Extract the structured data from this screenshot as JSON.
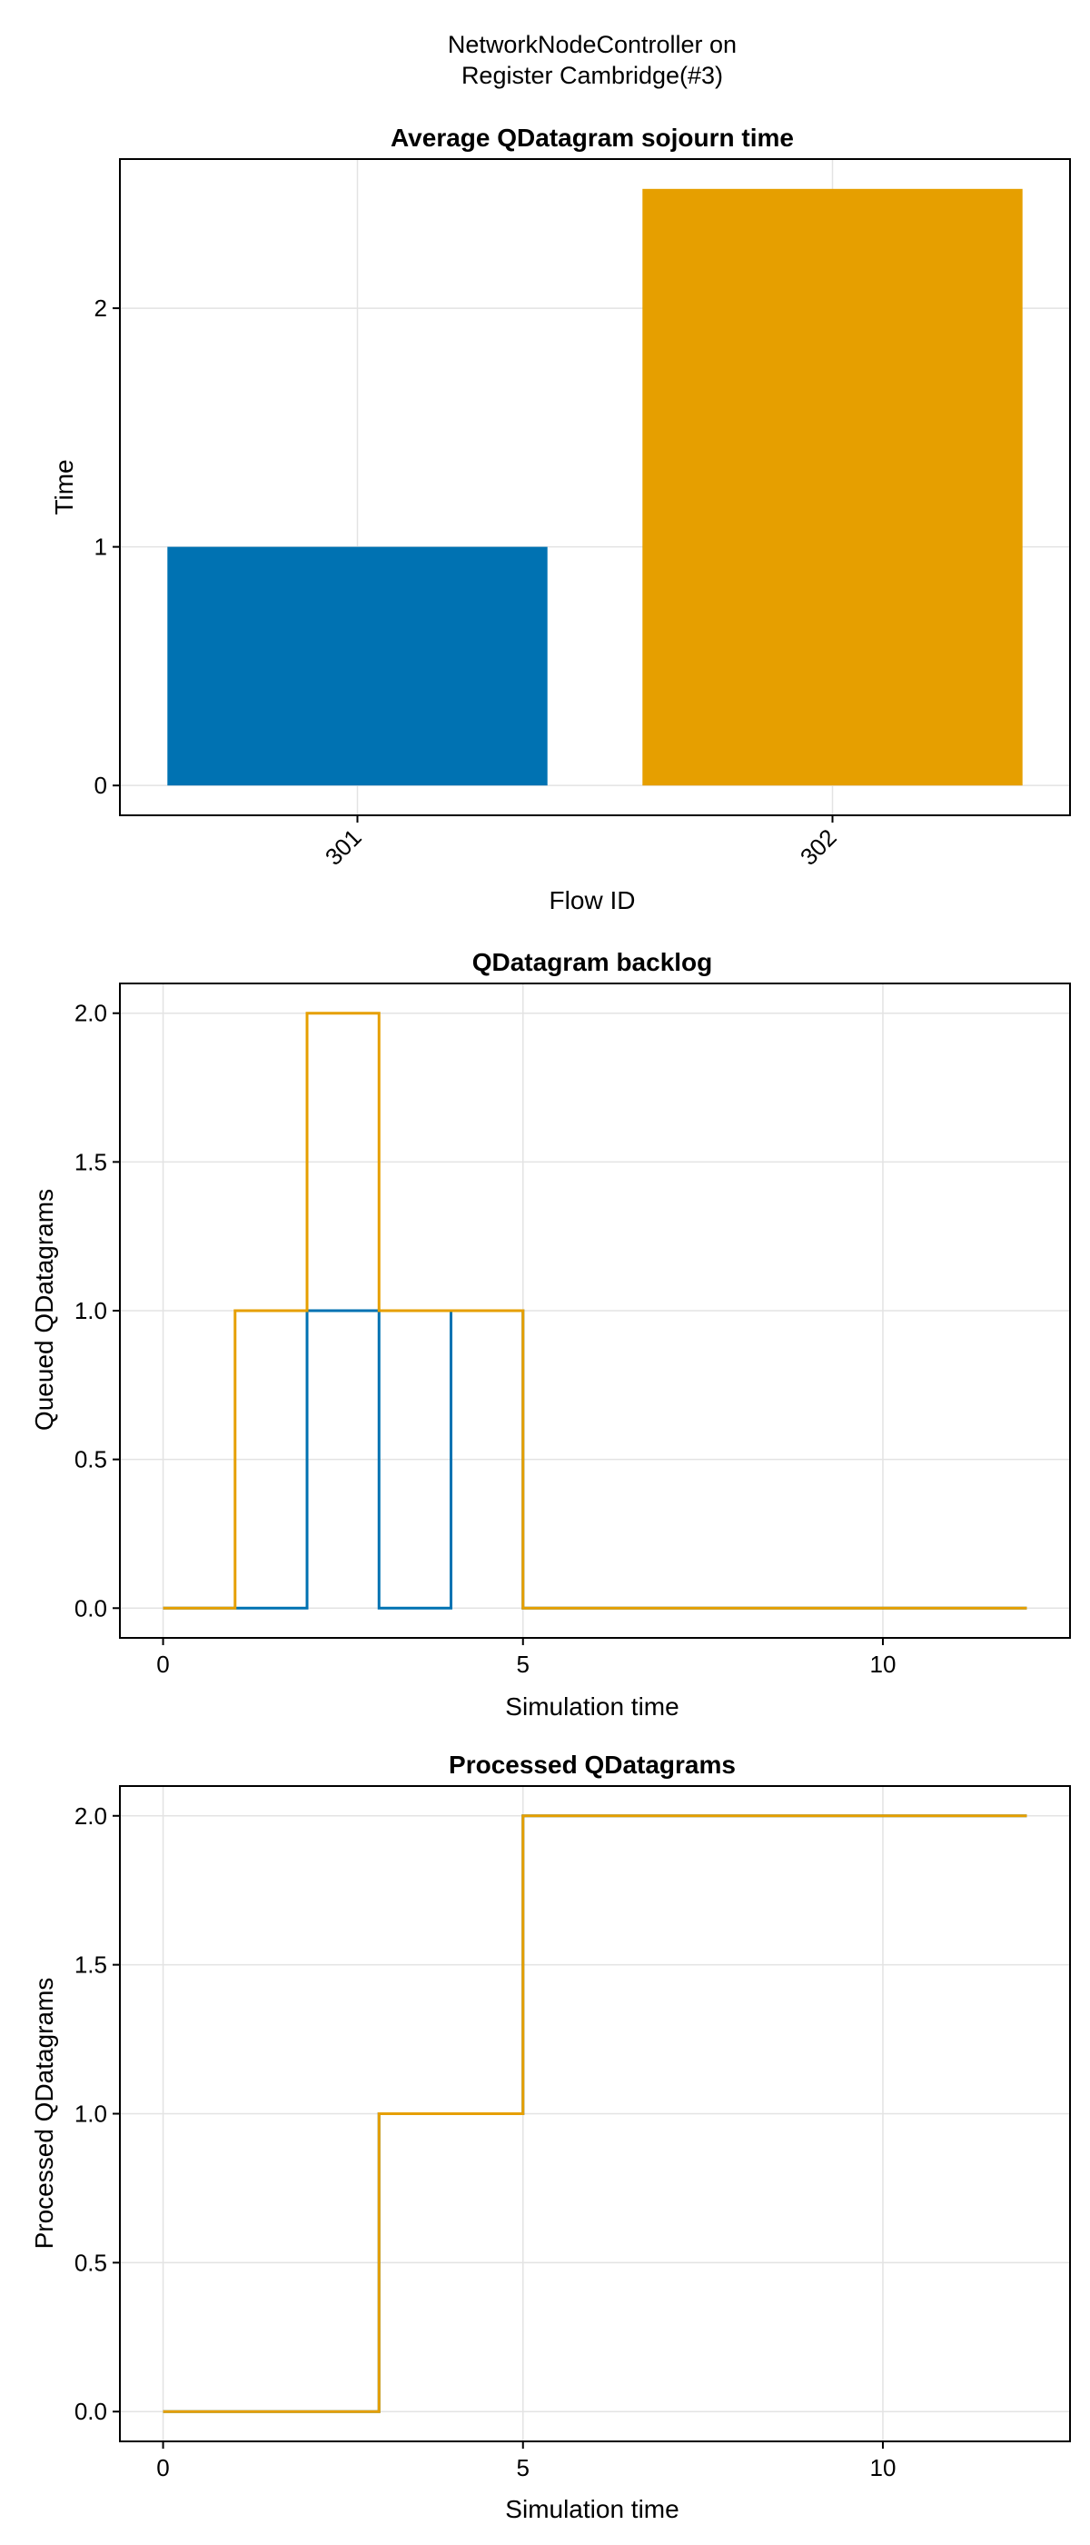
{
  "figure_title": [
    "NetworkNodeController on",
    "Register Cambridge(#3)"
  ],
  "chart_data": [
    {
      "type": "bar",
      "title": "Average QDatagram sojourn time",
      "xlabel": "Flow ID",
      "ylabel": "Time",
      "categories": [
        "301",
        "302"
      ],
      "values": [
        1.0,
        2.5
      ],
      "colors": [
        "#0072b2",
        "#e69f00"
      ],
      "ylim": [
        -0.125,
        2.625
      ],
      "yticks": [
        0,
        1,
        2
      ],
      "ytick_labels": [
        "0",
        "1",
        "2"
      ],
      "xtick_rotation": "45deg",
      "grid": true
    },
    {
      "type": "line",
      "step": true,
      "title": "QDatagram backlog",
      "xlabel": "Simulation time",
      "ylabel": "Queued QDatagrams",
      "xlim": [
        -0.6,
        12.6
      ],
      "ylim": [
        -0.1,
        2.1
      ],
      "xticks": [
        0,
        5,
        10
      ],
      "xtick_labels": [
        "0",
        "5",
        "10"
      ],
      "yticks": [
        0.0,
        0.5,
        1.0,
        1.5,
        2.0
      ],
      "ytick_labels": [
        "0.0",
        "0.5",
        "1.0",
        "1.5",
        "2.0"
      ],
      "grid": true,
      "series": [
        {
          "color": "#0072b2",
          "x": [
            0,
            2,
            3,
            4,
            5,
            12
          ],
          "y": [
            0,
            1,
            0,
            1,
            0,
            0
          ]
        },
        {
          "color": "#e69f00",
          "x": [
            0,
            1,
            2,
            3,
            5,
            12
          ],
          "y": [
            0,
            1,
            2,
            1,
            0,
            0
          ]
        }
      ]
    },
    {
      "type": "line",
      "step": true,
      "title": "Processed QDatagrams",
      "xlabel": "Simulation time",
      "ylabel": "Processed QDatagrams",
      "xlim": [
        -0.6,
        12.6
      ],
      "ylim": [
        -0.1,
        2.1
      ],
      "xticks": [
        0,
        5,
        10
      ],
      "xtick_labels": [
        "0",
        "5",
        "10"
      ],
      "yticks": [
        0.0,
        0.5,
        1.0,
        1.5,
        2.0
      ],
      "ytick_labels": [
        "0.0",
        "0.5",
        "1.0",
        "1.5",
        "2.0"
      ],
      "grid": true,
      "series": [
        {
          "color": "#0072b2",
          "x": [
            0,
            3,
            5,
            12
          ],
          "y": [
            0,
            1,
            2,
            2
          ]
        },
        {
          "color": "#e69f00",
          "x": [
            0,
            3,
            5,
            12
          ],
          "y": [
            0,
            1,
            2,
            2
          ]
        }
      ]
    }
  ]
}
